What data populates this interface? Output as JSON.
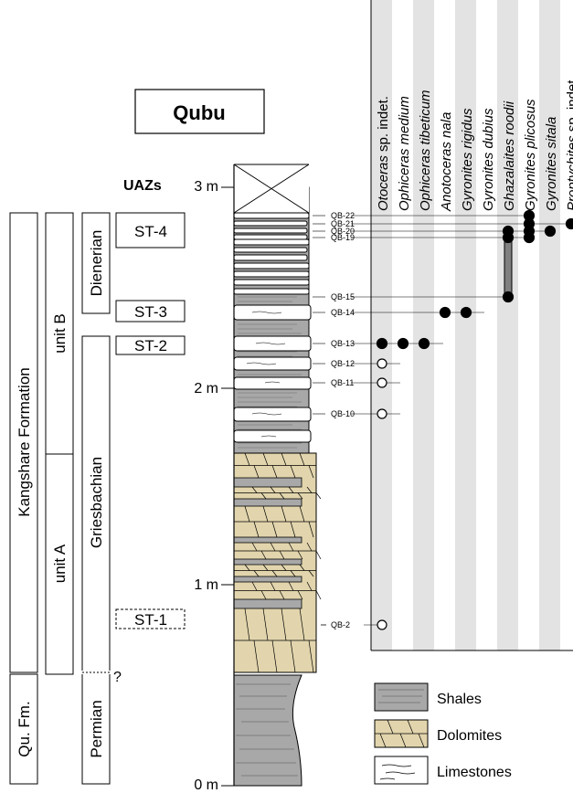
{
  "title": "Qubu",
  "uaz_header": "UAZs",
  "depth_labels": [
    "3 m",
    "2 m",
    "1 m",
    "0 m"
  ],
  "formation_columns": {
    "formations": [
      {
        "label": "Kangshare Formation"
      },
      {
        "label": "Qu. Fm."
      }
    ],
    "units": [
      {
        "label": "unit B"
      },
      {
        "label": "unit A"
      }
    ],
    "stages": [
      {
        "label": "Dienerian"
      },
      {
        "label": "Griesbachian"
      },
      {
        "label": "Permian"
      }
    ],
    "boundary_query": "?"
  },
  "zones": [
    {
      "label": "ST-4",
      "dashed": false
    },
    {
      "label": "ST-3",
      "dashed": false
    },
    {
      "label": "ST-2",
      "dashed": false
    },
    {
      "label": "ST-1",
      "dashed": true
    }
  ],
  "samples": [
    "QB-22",
    "QB-21",
    "QB-20",
    "QB-19",
    "QB-15",
    "QB-14",
    "QB-13",
    "QB-12",
    "QB-11",
    "QB-10",
    "QB-2"
  ],
  "taxa": [
    {
      "genus": "Otoceras",
      "rest": " sp. indet."
    },
    {
      "genus": "Ophiceras medium",
      "rest": ""
    },
    {
      "genus": "Ophiceras tibeticum",
      "rest": ""
    },
    {
      "genus": "Anotoceras nala",
      "rest": ""
    },
    {
      "genus": "Gyronites rigidus",
      "rest": ""
    },
    {
      "genus": "Gyronites dubius",
      "rest": ""
    },
    {
      "genus": "Ghazalaites roodii",
      "rest": ""
    },
    {
      "genus": "Gyronites plicosus",
      "rest": ""
    },
    {
      "genus": "Gyronites sitala",
      "rest": ""
    },
    {
      "genus": "Proptychites",
      "rest": " sp. indet."
    }
  ],
  "occurrences": [
    {
      "taxon": "Otoceras sp. indet.",
      "sample": "QB-2",
      "confirmed": false
    },
    {
      "taxon": "Otoceras sp. indet.",
      "sample": "QB-10",
      "confirmed": false
    },
    {
      "taxon": "Otoceras sp. indet.",
      "sample": "QB-11",
      "confirmed": false
    },
    {
      "taxon": "Otoceras sp. indet.",
      "sample": "QB-12",
      "confirmed": false
    },
    {
      "taxon": "Otoceras sp. indet.",
      "sample": "QB-13",
      "confirmed": true
    },
    {
      "taxon": "Ophiceras medium",
      "sample": "QB-13",
      "confirmed": true
    },
    {
      "taxon": "Ophiceras tibeticum",
      "sample": "QB-13",
      "confirmed": true
    },
    {
      "taxon": "Anotoceras nala",
      "sample": "QB-14",
      "confirmed": true
    },
    {
      "taxon": "Gyronites rigidus",
      "sample": "QB-14",
      "confirmed": true
    },
    {
      "taxon": "Ghazalaites roodii",
      "sample": "QB-15",
      "confirmed": true
    },
    {
      "taxon": "Ghazalaites roodii",
      "sample": "QB-19",
      "confirmed": true
    },
    {
      "taxon": "Ghazalaites roodii",
      "sample": "QB-20",
      "confirmed": true
    },
    {
      "taxon": "Gyronites plicosus",
      "sample": "QB-19",
      "confirmed": true
    },
    {
      "taxon": "Gyronites plicosus",
      "sample": "QB-20",
      "confirmed": true
    },
    {
      "taxon": "Gyronites plicosus",
      "sample": "QB-21",
      "confirmed": true
    },
    {
      "taxon": "Gyronites plicosus",
      "sample": "QB-22",
      "confirmed": true
    },
    {
      "taxon": "Gyronites sitala",
      "sample": "QB-20",
      "confirmed": true
    },
    {
      "taxon": "Proptychites sp. indet.",
      "sample": "QB-21",
      "confirmed": true
    }
  ],
  "ranges": [
    {
      "taxon": "Ghazalaites roodii",
      "from": "QB-15",
      "to": "QB-20"
    },
    {
      "taxon": "Gyronites plicosus",
      "from": "QB-19",
      "to": "QB-22"
    }
  ],
  "legend": [
    {
      "label": "Shales",
      "lithology": "shale"
    },
    {
      "label": "Dolomites",
      "lithology": "dolomite"
    },
    {
      "label": "Limestones",
      "lithology": "limestone"
    }
  ],
  "colors": {
    "shale": "#a8a8a8",
    "dolomite": "#e2d5ad",
    "limestone": "#ffffff",
    "chart_stripe": "#e3e3e3",
    "ink": "#000000",
    "range_bar": "#808080"
  }
}
